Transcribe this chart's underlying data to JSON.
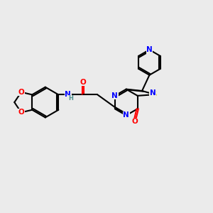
{
  "bg_color": "#ebebeb",
  "bond_color": "#000000",
  "atom_colors": {
    "N": "#0000ff",
    "O": "#ff0000",
    "S": "#cccc00",
    "H": "#4a9090"
  },
  "lw": 1.5,
  "fs": 7.0
}
